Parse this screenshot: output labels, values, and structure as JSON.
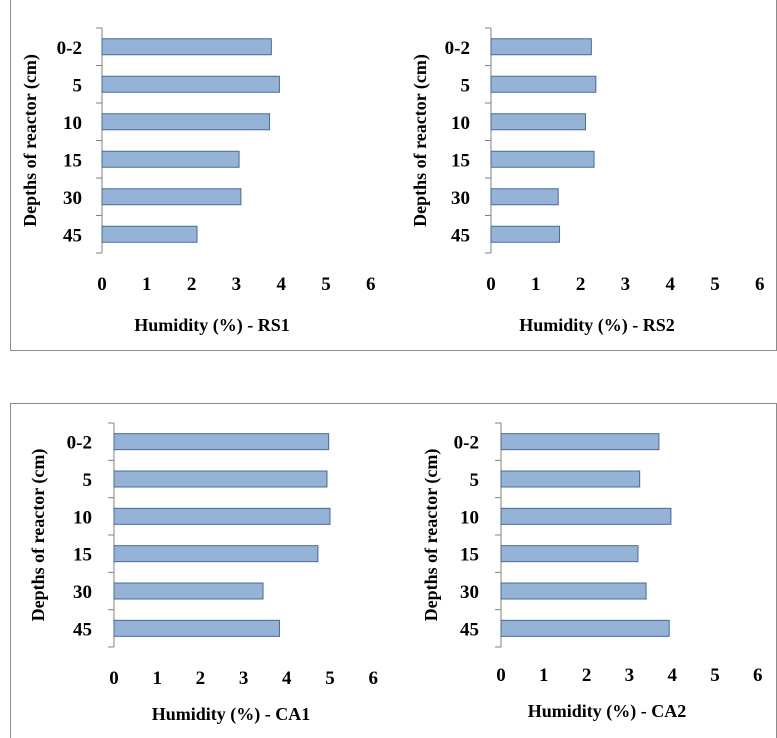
{
  "chart_data": [
    {
      "type": "bar",
      "orientation": "horizontal",
      "categories": [
        "0-2",
        "5",
        "10",
        "15",
        "30",
        "45"
      ],
      "values": [
        3.78,
        3.96,
        3.74,
        3.06,
        3.1,
        2.12
      ],
      "xlabel": "Humidity  (%) - RS1",
      "ylabel": "Depths of reactor (cm)",
      "xlim": [
        0,
        6
      ],
      "xticks": [
        "0",
        "1",
        "2",
        "3",
        "4",
        "5",
        "6"
      ],
      "bar_color": "#95b3d7",
      "bar_edge": "#4a6a94",
      "grid": false
    },
    {
      "type": "bar",
      "orientation": "horizontal",
      "categories": [
        "0-2",
        "5",
        "10",
        "15",
        "30",
        "45"
      ],
      "values": [
        2.24,
        2.34,
        2.11,
        2.3,
        1.5,
        1.53
      ],
      "xlabel": "Humidity  (%) - RS2",
      "ylabel": "Depths of reactor (cm)",
      "xlim": [
        0,
        6
      ],
      "xticks": [
        "0",
        "1",
        "2",
        "3",
        "4",
        "5",
        "6"
      ],
      "bar_color": "#95b3d7",
      "bar_edge": "#4a6a94",
      "grid": false
    },
    {
      "type": "bar",
      "orientation": "horizontal",
      "categories": [
        "0-2",
        "5",
        "10",
        "15",
        "30",
        "45"
      ],
      "values": [
        4.97,
        4.93,
        5.0,
        4.72,
        3.45,
        3.83
      ],
      "xlabel": "Humidity  (%) - CA1",
      "ylabel": "Depths of reactor (cm)",
      "xlim": [
        0,
        6
      ],
      "xticks": [
        "0",
        "1",
        "2",
        "3",
        "4",
        "5",
        "6"
      ],
      "bar_color": "#95b3d7",
      "bar_edge": "#4a6a94",
      "grid": false
    },
    {
      "type": "bar",
      "orientation": "horizontal",
      "categories": [
        "0-2",
        "5",
        "10",
        "15",
        "30",
        "45"
      ],
      "values": [
        3.69,
        3.24,
        3.97,
        3.2,
        3.39,
        3.93
      ],
      "xlabel": "Humidity  (%) - CA2",
      "ylabel": "Depths of reactor (cm)",
      "xlim": [
        0,
        6
      ],
      "xticks": [
        "0",
        "1",
        "2",
        "3",
        "4",
        "5",
        "6"
      ],
      "bar_color": "#95b3d7",
      "bar_edge": "#4a6a94",
      "grid": false
    }
  ]
}
